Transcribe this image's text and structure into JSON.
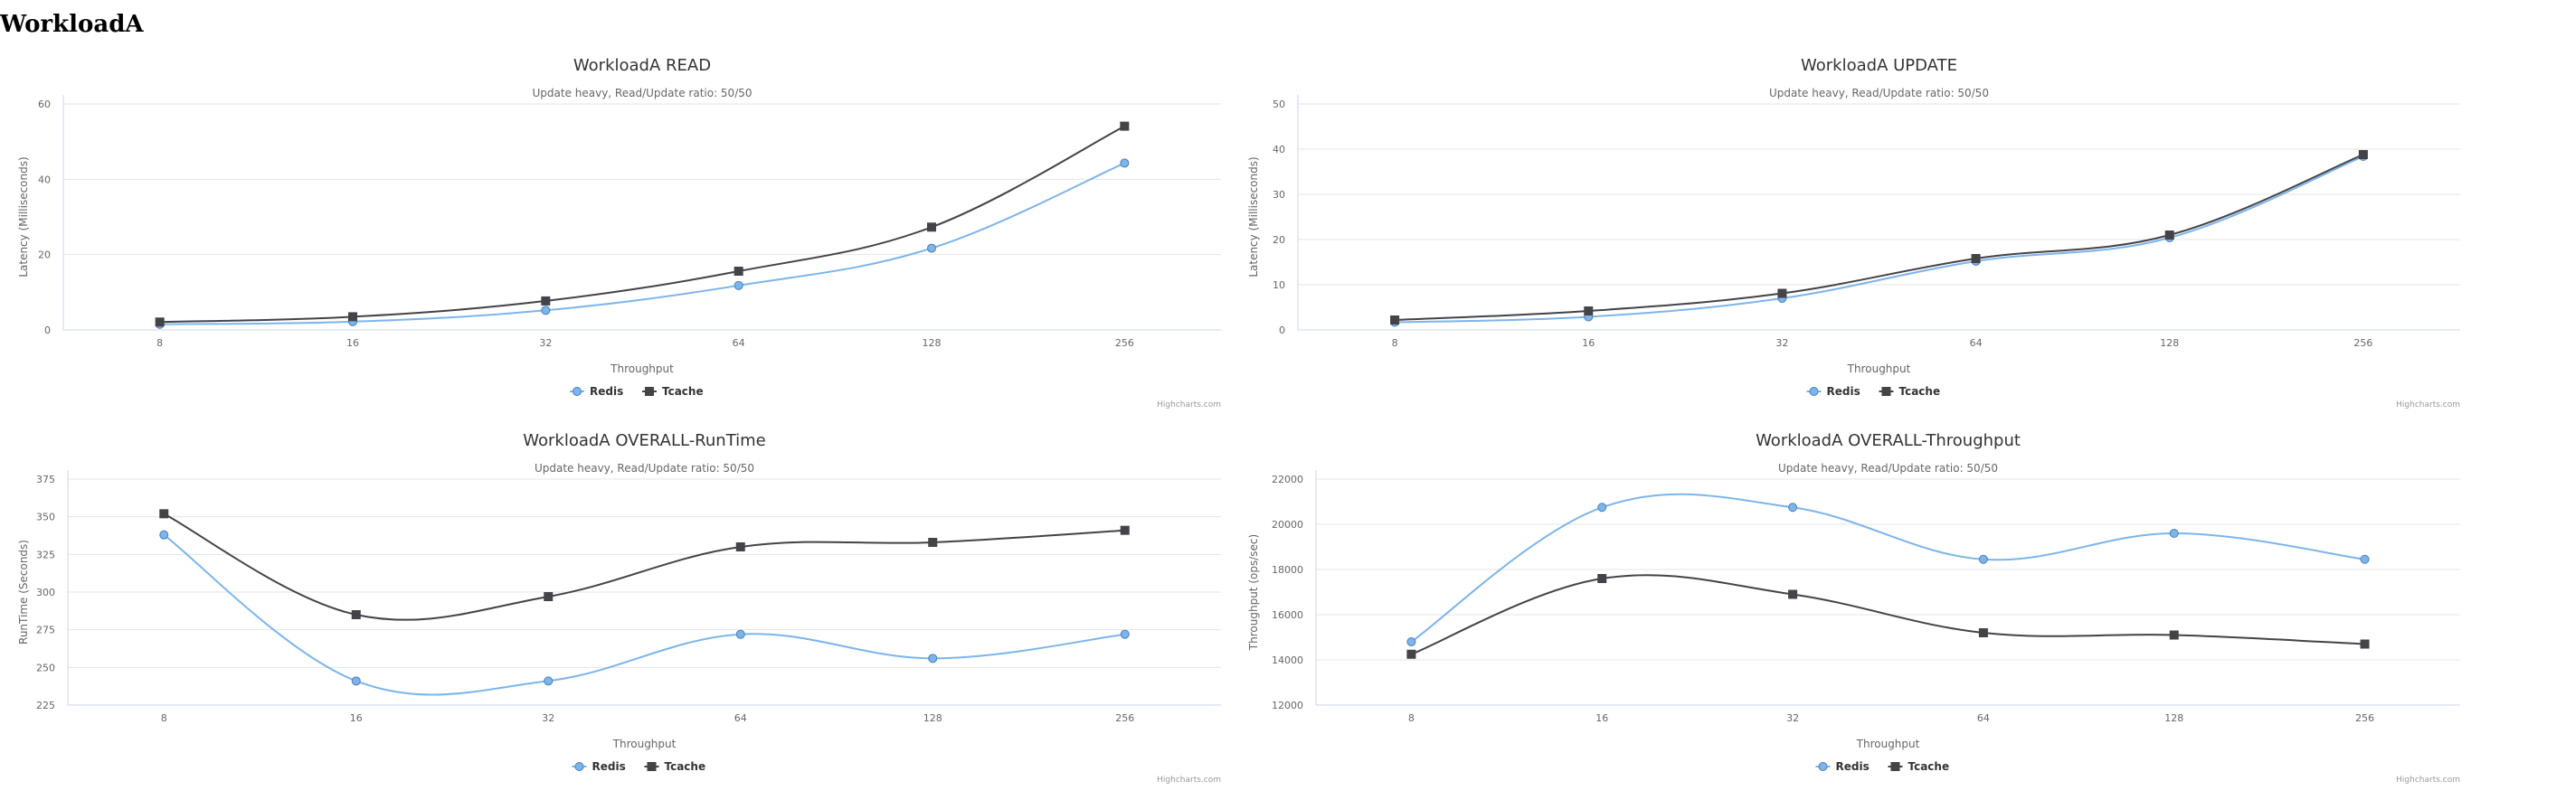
{
  "page_title": "WorkloadA",
  "colors": {
    "redis": "#7cb5ec",
    "tcache": "#434348",
    "grid": "#e6e6e6",
    "axis": "#ccd6eb"
  },
  "chart_data": [
    {
      "type": "line",
      "title": "WorkloadA READ",
      "subtitle": "Update heavy, Read/Update ratio: 50/50",
      "xlabel": "Throughput",
      "ylabel": "Latency (Milliseconds)",
      "categories": [
        "8",
        "16",
        "32",
        "64",
        "128",
        "256"
      ],
      "yticks": [
        0,
        20,
        40,
        60
      ],
      "ylim": [
        0,
        60
      ],
      "series": [
        {
          "name": "Redis",
          "values": [
            1.5,
            2.2,
            5.2,
            11.8,
            21.7,
            44.3
          ]
        },
        {
          "name": "Tcache",
          "values": [
            2.1,
            3.5,
            7.7,
            15.6,
            27.3,
            54.1
          ]
        }
      ],
      "credits": "Highcharts.com",
      "legend": "bottom-center"
    },
    {
      "type": "line",
      "title": "WorkloadA UPDATE",
      "subtitle": "Update heavy, Read/Update ratio: 50/50",
      "xlabel": "Throughput",
      "ylabel": "Latency (Milliseconds)",
      "categories": [
        "8",
        "16",
        "32",
        "64",
        "128",
        "256"
      ],
      "yticks": [
        0,
        10,
        20,
        30,
        40,
        50
      ],
      "ylim": [
        0,
        50
      ],
      "series": [
        {
          "name": "Redis",
          "values": [
            1.7,
            2.9,
            7.0,
            15.2,
            20.4,
            38.4
          ]
        },
        {
          "name": "Tcache",
          "values": [
            2.2,
            4.2,
            8.1,
            15.8,
            21.0,
            38.8
          ]
        }
      ],
      "credits": "Highcharts.com",
      "legend": "bottom-center"
    },
    {
      "type": "line",
      "title": "WorkloadA OVERALL-RunTime",
      "subtitle": "Update heavy, Read/Update ratio: 50/50",
      "xlabel": "Throughput",
      "ylabel": "RunTime (Seconds)",
      "categories": [
        "8",
        "16",
        "32",
        "64",
        "128",
        "256"
      ],
      "yticks": [
        225,
        250,
        275,
        300,
        325,
        350,
        375
      ],
      "ylim": [
        225,
        375
      ],
      "series": [
        {
          "name": "Redis",
          "values": [
            338,
            241,
            241,
            272,
            256,
            272
          ]
        },
        {
          "name": "Tcache",
          "values": [
            352,
            285,
            297,
            330,
            333,
            341
          ]
        }
      ],
      "credits": "Highcharts.com",
      "legend": "bottom-center"
    },
    {
      "type": "line",
      "title": "WorkloadA OVERALL-Throughput",
      "subtitle": "Update heavy, Read/Update ratio: 50/50",
      "xlabel": "Throughput",
      "ylabel": "Throughput (ops/sec)",
      "categories": [
        "8",
        "16",
        "32",
        "64",
        "128",
        "256"
      ],
      "yticks": [
        12000,
        14000,
        16000,
        18000,
        20000,
        22000
      ],
      "ylim": [
        12000,
        22000
      ],
      "series": [
        {
          "name": "Redis",
          "values": [
            14800,
            20750,
            20750,
            18450,
            19600,
            18450
          ]
        },
        {
          "name": "Tcache",
          "values": [
            14250,
            17600,
            16900,
            15200,
            15100,
            14700
          ]
        }
      ],
      "credits": "Highcharts.com",
      "legend": "bottom-center"
    }
  ]
}
